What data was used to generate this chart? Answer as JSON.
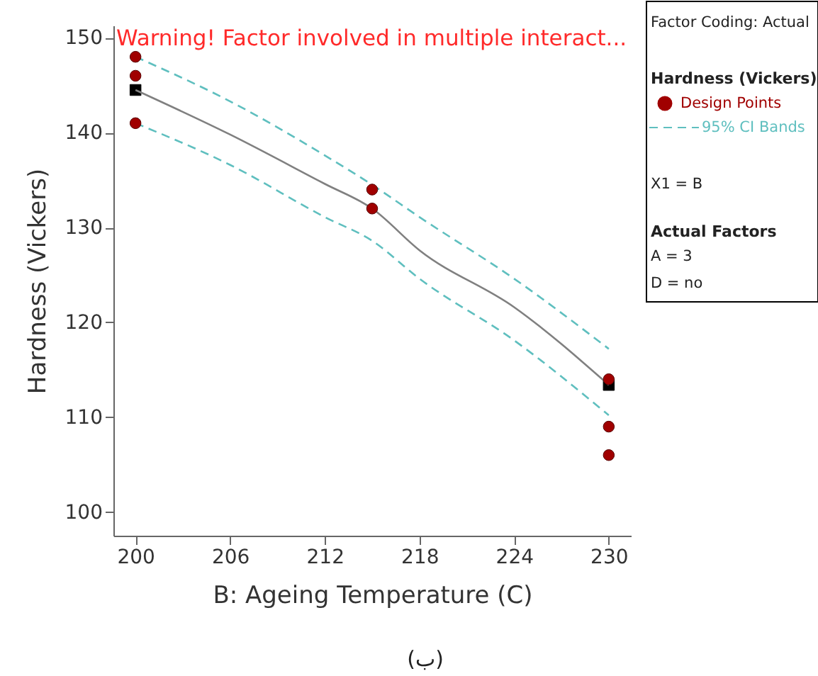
{
  "chart_data": {
    "type": "scatter",
    "xlabel": "B: Ageing Temperature (C)",
    "ylabel": "Hardness (Vickers)",
    "legend_title": "Hardness (Vickers)",
    "xlim": [
      198.6,
      231.4
    ],
    "xticks": [
      200,
      206,
      212,
      218,
      224,
      230
    ],
    "ylim": [
      97.5,
      151.3
    ],
    "yticks": [
      100,
      110,
      120,
      130,
      140,
      150
    ],
    "grid": false,
    "legend": "right",
    "series": [
      {
        "marker": "square",
        "color": "#000000",
        "x": [
          200,
          230
        ],
        "values": [
          144.5,
          113.4
        ]
      },
      {
        "name": "Design Points",
        "marker": "circle",
        "color": "#a00000",
        "x": [
          200,
          200,
          200,
          215,
          215,
          230,
          230,
          230
        ],
        "values": [
          148,
          146,
          141,
          134,
          132,
          114,
          109,
          106
        ]
      },
      {
        "type": "line",
        "line_style": "solid",
        "color": "#808080",
        "x": [
          200,
          206,
          212,
          215,
          218,
          224,
          230
        ],
        "values": [
          144.5,
          139.8,
          134.6,
          132,
          127.6,
          121.6,
          113.4
        ]
      },
      {
        "name": "95% CI Bands",
        "type": "line",
        "line_style": "dashed",
        "color": "#5fbfbf",
        "x": [
          200,
          206,
          212,
          215,
          218,
          224,
          230
        ],
        "values": [
          148,
          143.3,
          137.6,
          134.5,
          131.1,
          124.6,
          117.2
        ]
      },
      {
        "type": "line",
        "line_style": "dashed",
        "color": "#5fbfbf",
        "x": [
          200,
          206,
          212,
          215,
          218,
          224,
          230
        ],
        "values": [
          141,
          136.6,
          131.1,
          128.6,
          124.6,
          118.1,
          110.2
        ]
      }
    ],
    "annotations": [
      "Warning! Factor involved in multiple interact...",
      "Factor Coding: Actual",
      "X1 = B",
      "Actual Factors",
      "A = 3",
      "D = no",
      "(ب)"
    ]
  }
}
